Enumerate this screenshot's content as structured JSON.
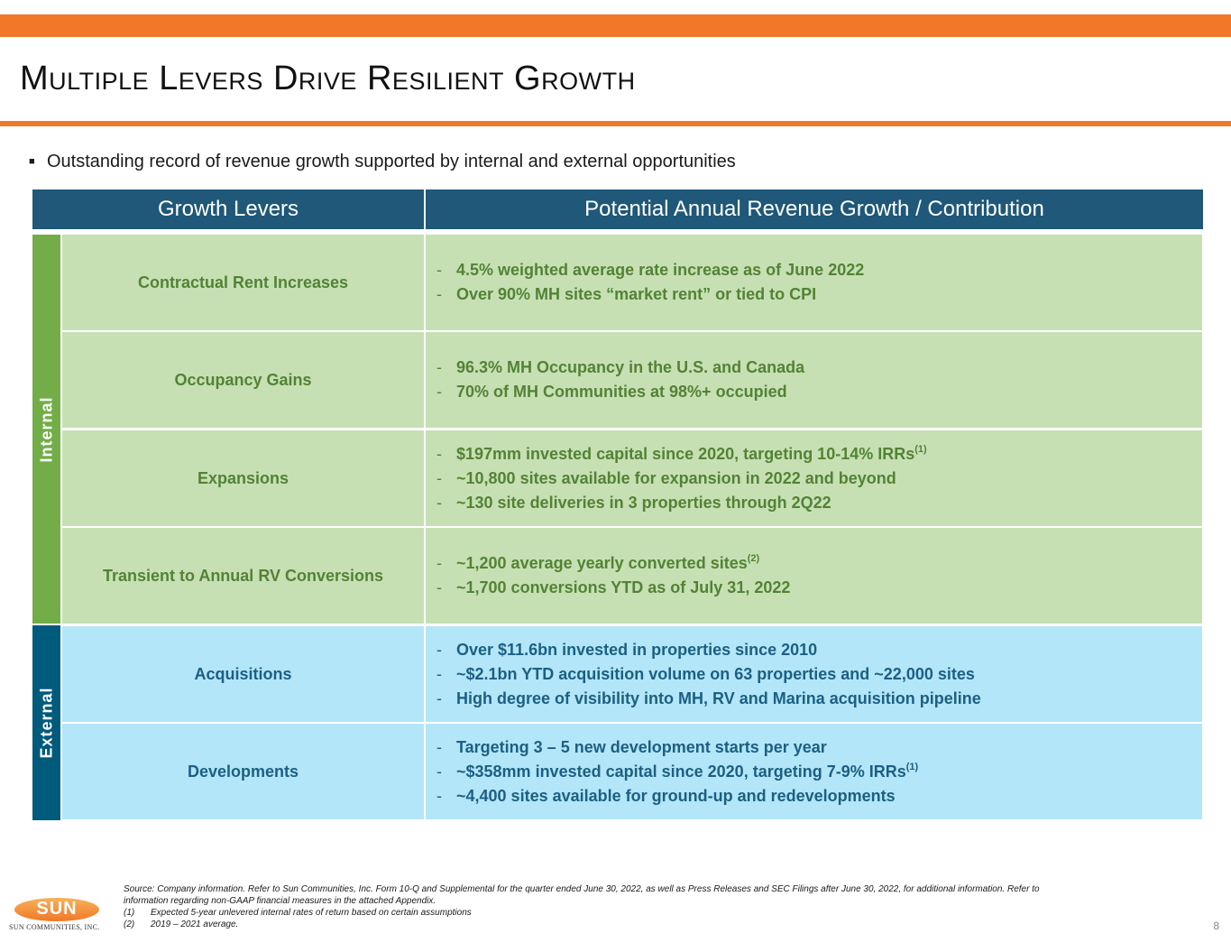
{
  "title": "Multiple Levers Drive Resilient Growth",
  "subtitle": "Outstanding record of revenue growth supported by internal and external opportunities",
  "table": {
    "headers": [
      "Growth Levers",
      "Potential Annual Revenue Growth / Contribution"
    ],
    "groups": [
      "Internal",
      "External"
    ],
    "rows": [
      {
        "lever": "Contractual Rent Increases",
        "bullets": [
          {
            "text": "4.5% weighted average rate increase as of June 2022",
            "sup": ""
          },
          {
            "text": "Over 90% MH sites “market rent” or tied to CPI",
            "sup": ""
          }
        ]
      },
      {
        "lever": "Occupancy Gains",
        "bullets": [
          {
            "text": "96.3% MH Occupancy in the U.S. and Canada",
            "sup": ""
          },
          {
            "text": "70% of MH Communities at 98%+ occupied",
            "sup": ""
          }
        ]
      },
      {
        "lever": "Expansions",
        "bullets": [
          {
            "text": "$197mm invested capital since 2020, targeting 10-14% IRRs",
            "sup": "(1)"
          },
          {
            "text": "~10,800 sites available for expansion in 2022 and beyond",
            "sup": ""
          },
          {
            "text": "~130 site deliveries in 3 properties through 2Q22",
            "sup": ""
          }
        ]
      },
      {
        "lever": "Transient to Annual RV Conversions",
        "bullets": [
          {
            "text": "~1,200 average yearly converted sites",
            "sup": "(2)"
          },
          {
            "text": "~1,700 conversions YTD as of July 31, 2022",
            "sup": ""
          }
        ]
      },
      {
        "lever": "Acquisitions",
        "bullets": [
          {
            "text": "Over $11.6bn invested in properties since 2010",
            "sup": ""
          },
          {
            "text": "~$2.1bn YTD acquisition volume on 63 properties and ~22,000 sites",
            "sup": ""
          },
          {
            "text": "High degree of visibility into MH, RV and Marina acquisition pipeline",
            "sup": ""
          }
        ]
      },
      {
        "lever": "Developments",
        "bullets": [
          {
            "text": "Targeting 3 – 5 new development starts per year",
            "sup": ""
          },
          {
            "text": "~$358mm invested capital since 2020, targeting 7-9% IRRs",
            "sup": "(1)"
          },
          {
            "text": "~4,400 sites available for ground-up and redevelopments",
            "sup": ""
          }
        ]
      }
    ]
  },
  "footnotes": {
    "source": "Source: Company information. Refer to Sun Communities, Inc. Form 10-Q and Supplemental for the quarter ended June 30, 2022, as well as Press Releases and SEC Filings after June 30, 2022, for additional information. Refer to",
    "source_cont": "information regarding non-GAAP financial measures in the attached Appendix.",
    "notes": [
      {
        "num": "(1)",
        "text": "Expected 5-year unlevered internal rates of return based on certain assumptions"
      },
      {
        "num": "(2)",
        "text": "2019 – 2021 average."
      }
    ]
  },
  "logo": {
    "word": "SUN",
    "sub": "SUN COMMUNITIES, INC."
  },
  "page_number": "8",
  "colors": {
    "accent_orange": "#f07828",
    "header_blue": "#1f5878",
    "internal_green": "#72ad47",
    "internal_fill": "#c6e0b4",
    "external_blue": "#005a7c",
    "external_fill": "#b3e6f8"
  }
}
